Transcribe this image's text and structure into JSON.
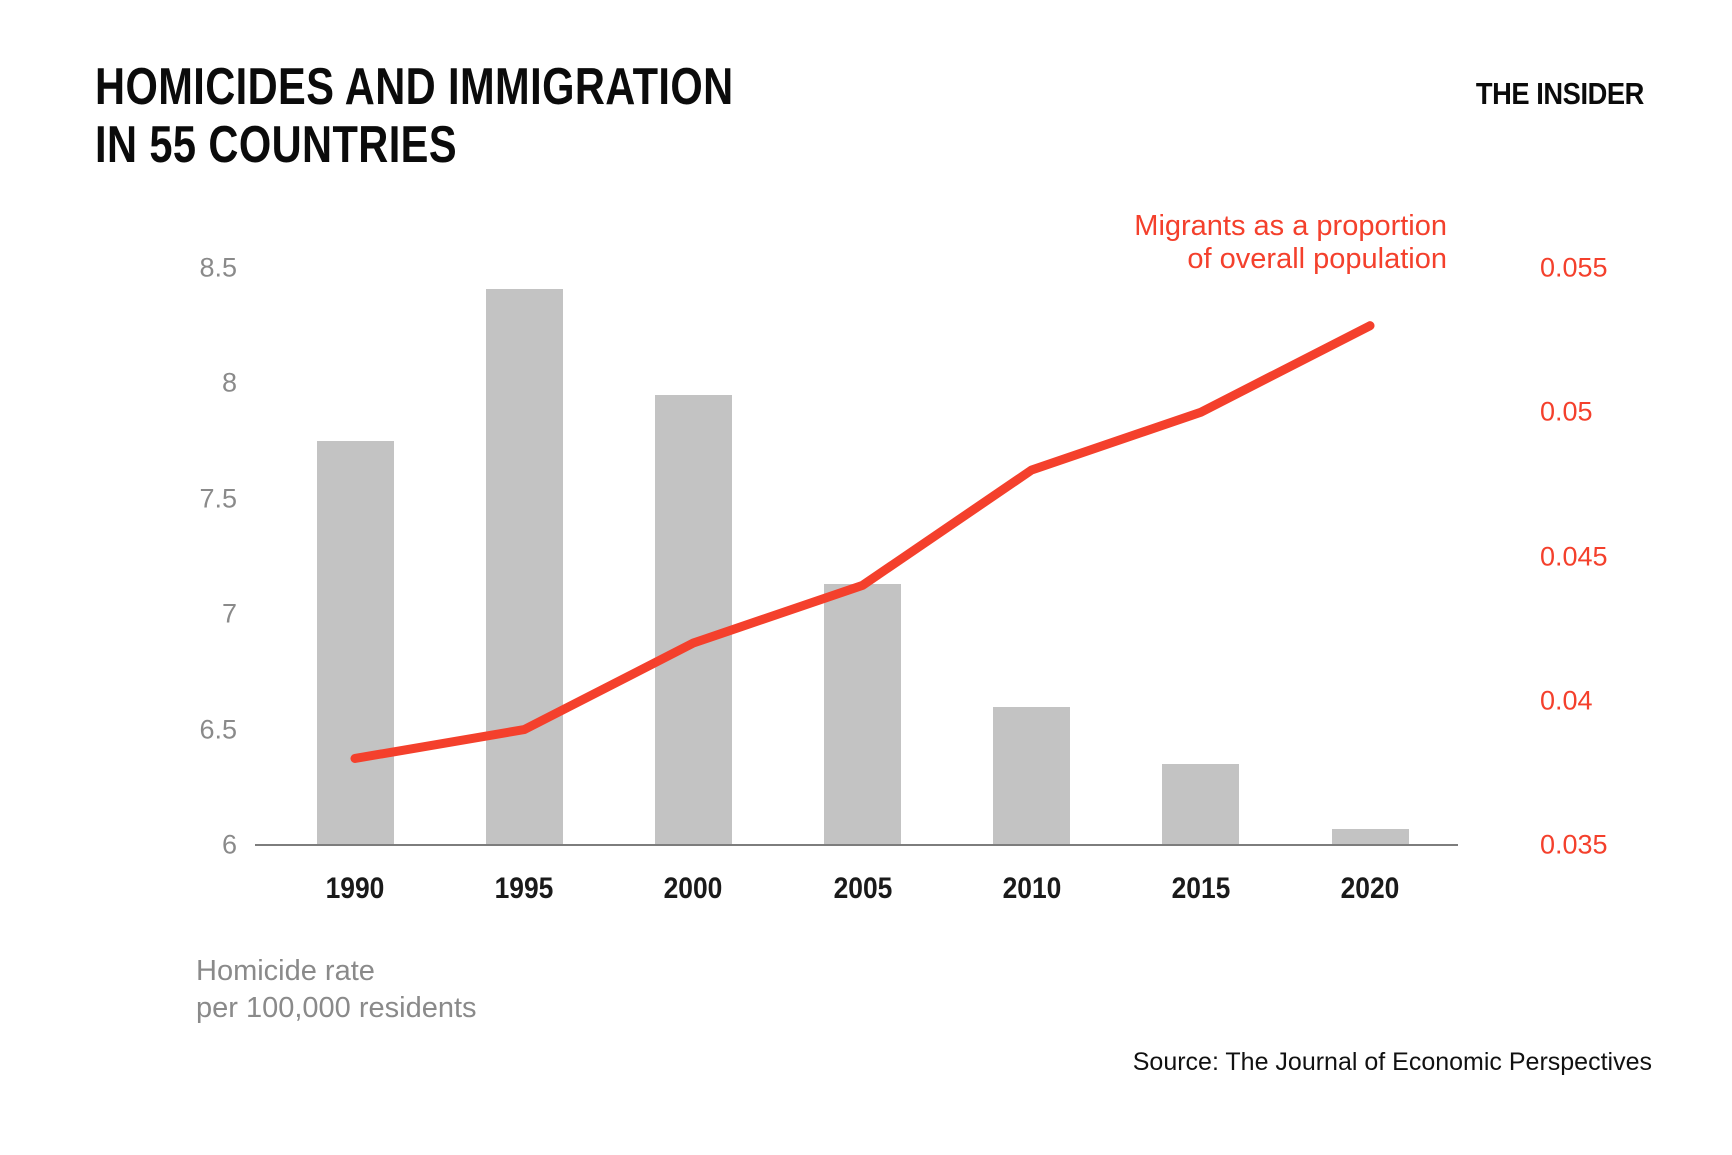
{
  "header": {
    "title": "HOMICIDES AND IMMIGRATION\nIN 55 COUNTRIES",
    "logo": "THE INSIDER"
  },
  "chart_data": {
    "type": "bar",
    "subtype": "bar-and-line-dual-axis",
    "categories": [
      "1990",
      "1995",
      "2000",
      "2005",
      "2010",
      "2015",
      "2020"
    ],
    "series": [
      {
        "name": "Homicide rate per 100,000 residents",
        "type": "bar",
        "axis": "left",
        "values": [
          7.75,
          8.41,
          7.95,
          7.13,
          6.6,
          6.35,
          6.07
        ],
        "color": "#c3c3c3"
      },
      {
        "name": "Migrants as a proportion of overall population",
        "type": "line",
        "axis": "right",
        "values": [
          0.038,
          0.039,
          0.042,
          0.044,
          0.048,
          0.05,
          0.053
        ],
        "color": "#f4402c"
      }
    ],
    "left_axis": {
      "label": "Homicide rate\nper 100,000 residents",
      "ticks": [
        "8.5",
        "8",
        "7.5",
        "7",
        "6.5",
        "6"
      ],
      "range": [
        6,
        8.5
      ],
      "text_color": "#8a8a8a"
    },
    "right_axis": {
      "ticks": [
        "0.055",
        "0.05",
        "0.045",
        "0.04",
        "0.035"
      ],
      "range": [
        0.035,
        0.055
      ],
      "text_color": "#f4402c"
    },
    "legend": {
      "text": "Migrants as a proportion\nof overall population",
      "position": "top-right",
      "color": "#f4402c"
    },
    "grid": false,
    "baseline_color": "#7d7d7d"
  },
  "footer": {
    "source": "Source: The Journal of Economic Perspectives"
  }
}
